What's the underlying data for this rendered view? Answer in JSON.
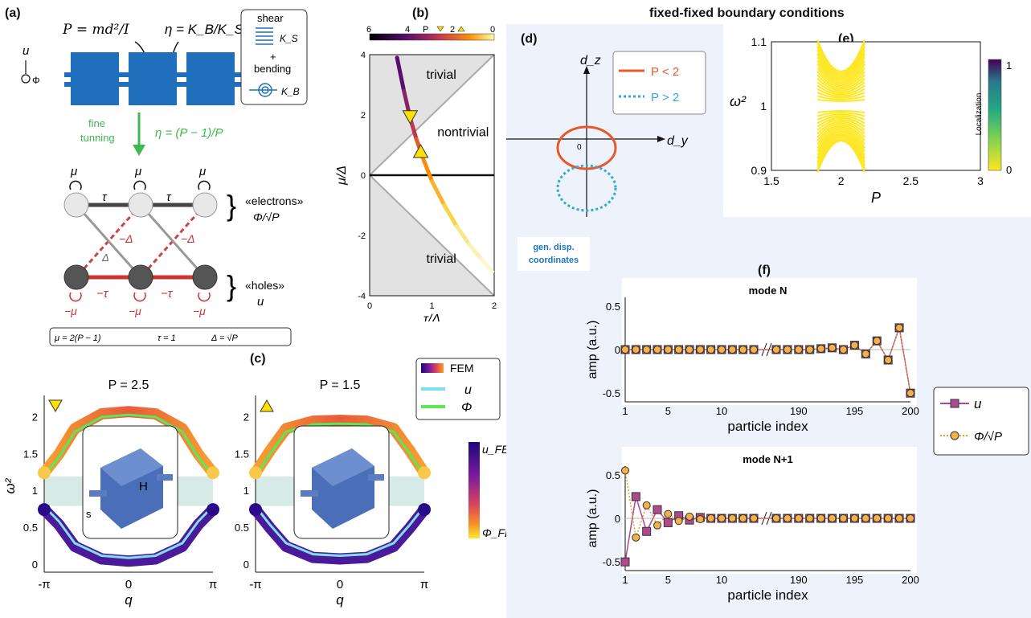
{
  "main_title": "fixed-fixed boundary conditions",
  "panel_labels": {
    "a": "(a)",
    "b": "(b)",
    "c": "(c)",
    "d": "(d)",
    "e": "(e)",
    "f": "(f)"
  },
  "panel_a": {
    "eq_P": "P = md²/I",
    "eq_eta": "η = K_B/K_S",
    "legend_shear": "shear",
    "legend_plus": "+",
    "legend_bending": "bending",
    "legend_KS": "K_S",
    "legend_KB": "K_B",
    "tuning_label_1": "fine",
    "tuning_label_2": "tunning",
    "tuning_eq": "η = (P − 1)/P",
    "axis_u": "u",
    "axis_phi": "Φ",
    "mu": "μ",
    "tau": "τ",
    "minus_delta": "−Δ",
    "delta": "Δ",
    "minus_tau": "−τ",
    "minus_mu": "−μ",
    "electrons": "«electrons»",
    "electrons_var": "Φ/√P",
    "holes": "«holes»",
    "holes_var": "u",
    "params": [
      "μ = 2(P − 1)",
      "τ = 1",
      "Δ = √P"
    ]
  },
  "panel_b": {
    "colorbar_label": "P",
    "colorbar_ticks": [
      "6",
      "4",
      "2",
      "0"
    ],
    "regions": [
      "trivial",
      "nontrivial",
      "trivial"
    ],
    "xlabel": "τ/Δ",
    "ylabel": "μ/Δ",
    "xticks": [
      "0",
      "1",
      "2"
    ],
    "yticks": [
      "4",
      "2",
      "0",
      "-2",
      "-4"
    ]
  },
  "panel_c": {
    "left_title": "P = 2.5",
    "right_title": "P = 1.5",
    "ylabel": "ω²",
    "xlabel": "q",
    "yticks": [
      "2",
      "1.5",
      "1",
      "0.5",
      "0"
    ],
    "xticks": [
      "-π",
      "0",
      "π"
    ],
    "legend": [
      "FEM",
      "u",
      "Φ"
    ],
    "colorbar_top": "u_FEM",
    "colorbar_bottom": "Φ_FEM",
    "inset_H": "H",
    "inset_s": "s"
  },
  "panel_d": {
    "axis_dz": "d_z",
    "axis_dy": "d_y",
    "origin": "0",
    "legend": [
      "P < 2",
      "P > 2"
    ],
    "note": "gen. disp. coordinates"
  },
  "panel_e": {
    "ylabel": "ω²",
    "xlabel": "P",
    "xticks": [
      "1.5",
      "2",
      "2.5",
      "3"
    ],
    "yticks": [
      "1.1",
      "1",
      "0.9"
    ],
    "colorbar_label": "Localization",
    "colorbar_ticks": [
      "1",
      "0"
    ]
  },
  "panel_f": {
    "top_title": "mode N",
    "bottom_title": "mode N+1",
    "ylabel": "amp (a.u.)",
    "xlabel": "particle index",
    "yticks": [
      "0.5",
      "0",
      "-0.5"
    ],
    "xticks": [
      "1",
      "5",
      "10",
      "190",
      "195",
      "200"
    ],
    "legend": [
      "u",
      "Φ/√P"
    ]
  },
  "chart_data": [
    {
      "type": "line",
      "title": "",
      "xlabel": "τ/Δ",
      "ylabel": "μ/Δ",
      "xlim": [
        0,
        2
      ],
      "ylim": [
        -4,
        4
      ],
      "series": [
        {
          "x": [
            0.44,
            0.55,
            0.65,
            0.75,
            0.85,
            1.0,
            1.2,
            1.4,
            1.6,
            1.8,
            1.97
          ],
          "values": [
            3.9,
            2.8,
            1.9,
            1.2,
            0.6,
            -0.2,
            -1.0,
            -1.7,
            -2.3,
            -2.8,
            -3.2
          ]
        }
      ],
      "markers": [
        {
          "x": 0.65,
          "y": 1.9,
          "shape": "down-triangle"
        },
        {
          "x": 0.82,
          "y": 0.8,
          "shape": "up-triangle"
        }
      ]
    },
    {
      "type": "line",
      "title": "P = 2.5",
      "xlabel": "q",
      "ylabel": "ω²",
      "ylim": [
        -0.1,
        2.3
      ],
      "series": [
        {
          "x": [
            -3.14,
            -2.6,
            -2.0,
            -1.0,
            0,
            1.0,
            2.0,
            2.6,
            3.14
          ],
          "values": [
            1.25,
            1.5,
            1.85,
            2.05,
            2.08,
            2.05,
            1.85,
            1.5,
            1.25
          ]
        },
        {
          "x": [
            -3.14,
            -2.6,
            -2.0,
            -1.0,
            0,
            1.0,
            2.0,
            2.6,
            3.14
          ],
          "values": [
            0.75,
            0.55,
            0.25,
            0.08,
            0.05,
            0.08,
            0.25,
            0.55,
            0.75
          ]
        }
      ]
    },
    {
      "type": "line",
      "title": "P = 1.5",
      "xlabel": "q",
      "ylabel": "ω²",
      "ylim": [
        -0.1,
        2.3
      ],
      "series": [
        {
          "x": [
            -3.14,
            -2.6,
            -2.0,
            -1.0,
            0,
            1.0,
            2.0,
            2.6,
            3.14
          ],
          "values": [
            1.25,
            1.55,
            1.85,
            1.95,
            1.96,
            1.95,
            1.85,
            1.55,
            1.25
          ]
        },
        {
          "x": [
            -3.14,
            -2.6,
            -2.0,
            -1.0,
            0,
            1.0,
            2.0,
            2.6,
            3.14
          ],
          "values": [
            0.75,
            0.5,
            0.25,
            0.1,
            0.08,
            0.1,
            0.25,
            0.5,
            0.75
          ]
        }
      ]
    },
    {
      "type": "line",
      "title": "mode N",
      "xlabel": "particle index",
      "ylabel": "amp (a.u.)",
      "ylim": [
        -0.6,
        0.6
      ],
      "series": [
        {
          "name": "u",
          "x": [
            1,
            2,
            3,
            4,
            5,
            6,
            7,
            8,
            9,
            10,
            11,
            12,
            13,
            188,
            189,
            190,
            191,
            192,
            193,
            194,
            195,
            196,
            197,
            198,
            199,
            200
          ],
          "values": [
            0,
            0,
            0,
            0,
            0,
            0,
            0,
            0,
            0,
            0,
            0,
            0,
            0,
            0,
            0,
            0,
            0,
            0.01,
            0.02,
            0,
            0.05,
            -0.05,
            0.1,
            -0.12,
            0.25,
            -0.5
          ]
        },
        {
          "name": "Φ/√P",
          "x": [
            1,
            2,
            3,
            4,
            5,
            6,
            7,
            8,
            9,
            10,
            11,
            12,
            13,
            188,
            189,
            190,
            191,
            192,
            193,
            194,
            195,
            196,
            197,
            198,
            199,
            200
          ],
          "values": [
            0,
            0,
            0,
            0,
            0,
            0,
            0,
            0,
            0,
            0,
            0,
            0,
            0,
            0,
            0,
            0,
            0,
            0.01,
            0.02,
            0,
            0.05,
            -0.05,
            0.1,
            -0.12,
            0.25,
            -0.5
          ]
        }
      ]
    },
    {
      "type": "line",
      "title": "mode N+1",
      "xlabel": "particle index",
      "ylabel": "amp (a.u.)",
      "ylim": [
        -0.6,
        0.6
      ],
      "series": [
        {
          "name": "u",
          "x": [
            1,
            2,
            3,
            4,
            5,
            6,
            7,
            8,
            9,
            10,
            11,
            12,
            13,
            188,
            189,
            190,
            191,
            192,
            193,
            194,
            195,
            196,
            197,
            198,
            199,
            200
          ],
          "values": [
            -0.5,
            0.25,
            -0.15,
            0.1,
            -0.05,
            0.03,
            -0.02,
            0.01,
            0,
            0,
            0,
            0,
            0,
            0,
            0,
            0,
            0,
            0,
            0,
            0,
            0,
            0,
            0,
            0,
            0,
            0
          ]
        },
        {
          "name": "Φ/√P",
          "x": [
            1,
            2,
            3,
            4,
            5,
            6,
            7,
            8,
            9,
            10,
            11,
            12,
            13,
            188,
            189,
            190,
            191,
            192,
            193,
            194,
            195,
            196,
            197,
            198,
            199,
            200
          ],
          "values": [
            0.55,
            -0.22,
            0.15,
            -0.08,
            0.05,
            -0.03,
            0.02,
            -0.01,
            0,
            0,
            0,
            0,
            0,
            0,
            0,
            0,
            0,
            0,
            0,
            0,
            0,
            0,
            0,
            0,
            0,
            0
          ]
        }
      ]
    }
  ]
}
